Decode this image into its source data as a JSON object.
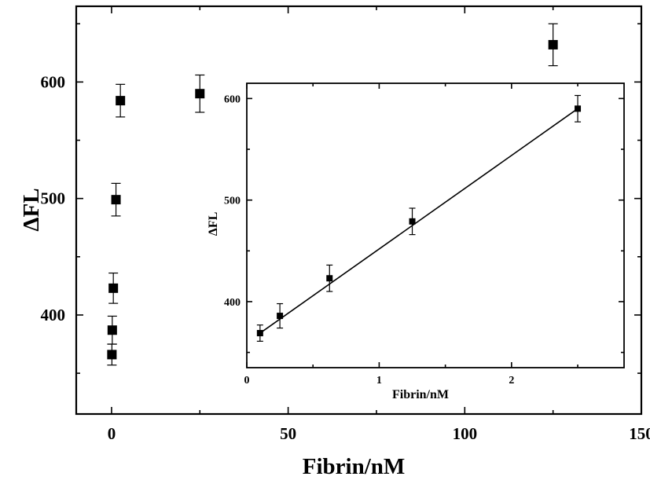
{
  "chart_data": [
    {
      "type": "scatter",
      "title": "",
      "xlabel": "Fibrin/nM",
      "ylabel": "ΔFL",
      "xlim": [
        -10,
        150
      ],
      "ylim": [
        315,
        665
      ],
      "xticks": [
        0,
        50,
        100,
        150
      ],
      "xtick_labels": [
        "0",
        "50",
        "100",
        "150"
      ],
      "yticks": [
        400,
        500,
        600
      ],
      "ytick_labels": [
        "400",
        "500",
        "600"
      ],
      "grid": false,
      "series": [
        {
          "points": [
            {
              "x": 0.1,
              "y": 366,
              "err": 9
            },
            {
              "x": 0.2,
              "y": 387,
              "err": 12
            },
            {
              "x": 0.5,
              "y": 423,
              "err": 13
            },
            {
              "x": 1.25,
              "y": 499,
              "err": 14
            },
            {
              "x": 2.5,
              "y": 584,
              "err": 14
            },
            {
              "x": 25,
              "y": 590,
              "err": 16
            },
            {
              "x": 125,
              "y": 632,
              "err": 18
            }
          ]
        }
      ]
    },
    {
      "type": "scatter",
      "title": "",
      "xlabel": "Fibrin/nM",
      "ylabel": "ΔFL",
      "xlim": [
        0,
        2.85
      ],
      "ylim": [
        335,
        615
      ],
      "xticks": [
        0,
        1,
        2
      ],
      "xtick_labels": [
        "0",
        "1",
        "2"
      ],
      "yticks": [
        400,
        500,
        600
      ],
      "ytick_labels": [
        "400",
        "500",
        "600"
      ],
      "grid": false,
      "fit_line": {
        "x": [
          0.1,
          2.5
        ],
        "y": [
          369,
          590
        ]
      },
      "series": [
        {
          "points": [
            {
              "x": 0.1,
              "y": 369,
              "err": 8
            },
            {
              "x": 0.25,
              "y": 386,
              "err": 12
            },
            {
              "x": 0.625,
              "y": 423,
              "err": 13
            },
            {
              "x": 1.25,
              "y": 479,
              "err": 13
            },
            {
              "x": 2.5,
              "y": 590,
              "err": 13
            }
          ]
        }
      ]
    }
  ]
}
